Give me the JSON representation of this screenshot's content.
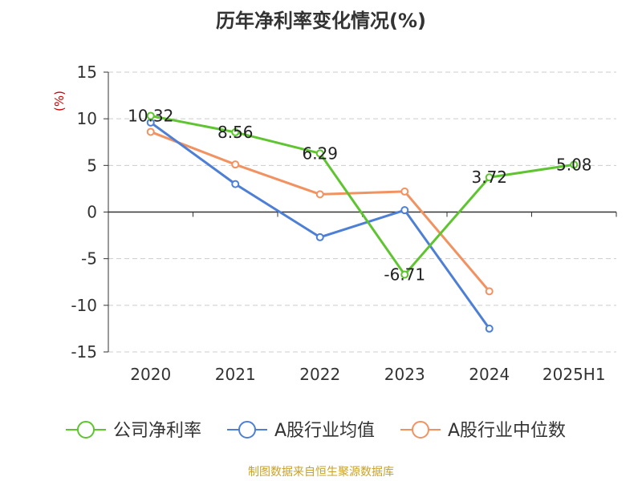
{
  "title": "历年净利率变化情况(%)",
  "source": "制图数据来自恒生聚源数据库",
  "colors": {
    "text": "#333333",
    "unit": "#cc0000",
    "grid": "#cccccc",
    "source": "#c9a227"
  },
  "chart_data": {
    "type": "line",
    "categories": [
      "2020",
      "2021",
      "2022",
      "2023",
      "2024",
      "2025H1"
    ],
    "ylabel": "(%)",
    "ylim": [
      -15,
      15
    ],
    "yticks": [
      15,
      10,
      5,
      0,
      -5,
      -10,
      -15
    ],
    "grid": true,
    "legend_position": "bottom",
    "series": [
      {
        "name": "公司净利率",
        "color": "#5ec42f",
        "values": [
          10.32,
          8.56,
          6.29,
          -6.71,
          3.72,
          5.08
        ],
        "labels": [
          "10.32",
          "8.56",
          "6.29",
          "-6.71",
          "3.72",
          "5.08"
        ]
      },
      {
        "name": "A股行业均值",
        "color": "#4e7fd6",
        "values": [
          9.6,
          3.0,
          -2.7,
          0.2,
          -12.5,
          null
        ]
      },
      {
        "name": "A股行业中位数",
        "color": "#f29261",
        "values": [
          8.6,
          5.1,
          1.9,
          2.2,
          -8.5,
          null
        ]
      }
    ]
  }
}
